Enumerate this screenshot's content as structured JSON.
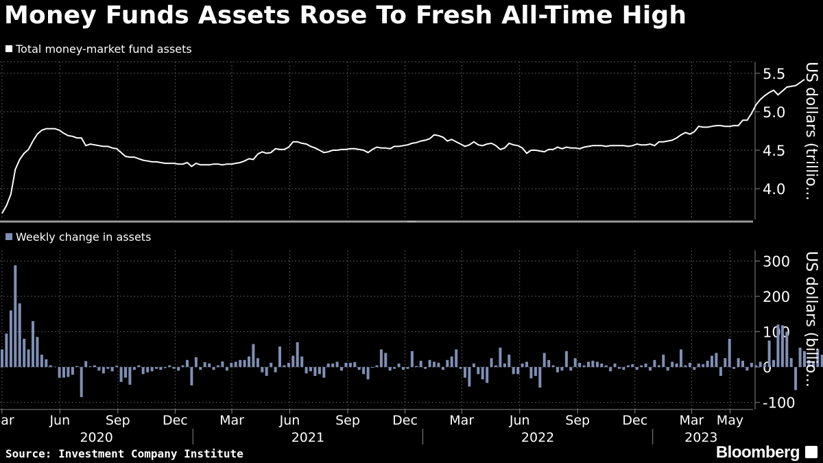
{
  "title": "Money Funds Assets Rose To Fresh All-Time High",
  "source": "Source: Investment Company Institute",
  "brand": "Bloomberg",
  "colors": {
    "line": "#ffffff",
    "bar": "#7f8fb5",
    "grid": "#555555",
    "background": "#000000"
  },
  "chart_data": [
    {
      "type": "line",
      "legend": "Total money-market fund assets",
      "ylabel": "US dollars (trillio...",
      "ylim": [
        3.6,
        5.65
      ],
      "yticks": [
        4.0,
        4.5,
        5.0,
        5.5
      ],
      "ytick_labels": [
        "4.0",
        "4.5",
        "5.0",
        "5.5"
      ],
      "x_start": "2020-03-04",
      "x_step_weeks": 1,
      "values": [
        3.68,
        3.78,
        3.93,
        4.25,
        4.38,
        4.46,
        4.51,
        4.62,
        4.71,
        4.76,
        4.78,
        4.78,
        4.78,
        4.76,
        4.72,
        4.69,
        4.68,
        4.66,
        4.66,
        4.56,
        4.58,
        4.57,
        4.56,
        4.55,
        4.55,
        4.53,
        4.52,
        4.47,
        4.42,
        4.41,
        4.41,
        4.39,
        4.37,
        4.36,
        4.35,
        4.35,
        4.34,
        4.33,
        4.33,
        4.33,
        4.32,
        4.32,
        4.34,
        4.29,
        4.33,
        4.31,
        4.31,
        4.31,
        4.32,
        4.32,
        4.31,
        4.32,
        4.32,
        4.33,
        4.34,
        4.36,
        4.39,
        4.38,
        4.45,
        4.48,
        4.46,
        4.47,
        4.52,
        4.51,
        4.51,
        4.54,
        4.61,
        4.61,
        4.59,
        4.58,
        4.55,
        4.53,
        4.5,
        4.47,
        4.48,
        4.5,
        4.5,
        4.51,
        4.51,
        4.52,
        4.52,
        4.51,
        4.5,
        4.47,
        4.51,
        4.54,
        4.53,
        4.53,
        4.52,
        4.55,
        4.55,
        4.56,
        4.57,
        4.59,
        4.6,
        4.62,
        4.63,
        4.65,
        4.7,
        4.69,
        4.67,
        4.62,
        4.64,
        4.61,
        4.58,
        4.55,
        4.57,
        4.61,
        4.57,
        4.56,
        4.58,
        4.59,
        4.56,
        4.51,
        4.53,
        4.59,
        4.57,
        4.56,
        4.53,
        4.46,
        4.5,
        4.5,
        4.49,
        4.48,
        4.51,
        4.51,
        4.54,
        4.52,
        4.54,
        4.53,
        4.53,
        4.52,
        4.54,
        4.55,
        4.56,
        4.56,
        4.56,
        4.55,
        4.56,
        4.56,
        4.56,
        4.56,
        4.55,
        4.56,
        4.58,
        4.57,
        4.57,
        4.58,
        4.56,
        4.61,
        4.61,
        4.62,
        4.63,
        4.66,
        4.7,
        4.73,
        4.71,
        4.74,
        4.81,
        4.8,
        4.8,
        4.81,
        4.82,
        4.82,
        4.81,
        4.81,
        4.82,
        4.82,
        4.89,
        4.89,
        4.98,
        5.09,
        5.16,
        5.21,
        5.25,
        5.28,
        5.22,
        5.27,
        5.32,
        5.33,
        5.34,
        5.38,
        5.42
      ]
    },
    {
      "type": "bar",
      "legend": "Weekly change in assets",
      "ylabel": "US dollars (billio...",
      "ylim": [
        -120,
        330
      ],
      "yticks": [
        -100,
        0,
        100,
        200,
        300
      ],
      "ytick_labels": [
        "-100",
        "0",
        "100",
        "200",
        "300"
      ],
      "x_start": "2020-03-04",
      "x_step_weeks": 1,
      "values": [
        50,
        95,
        160,
        288,
        180,
        80,
        50,
        130,
        85,
        35,
        22,
        5,
        1,
        -30,
        -30,
        -28,
        -22,
        3,
        -85,
        17,
        2,
        5,
        -10,
        -18,
        -5,
        -12,
        4,
        -42,
        -30,
        -50,
        -8,
        5,
        -20,
        -15,
        -12,
        -5,
        -8,
        -3,
        5,
        -5,
        -10,
        5,
        20,
        -52,
        28,
        -8,
        14,
        10,
        -8,
        5,
        16,
        -10,
        12,
        15,
        20,
        20,
        30,
        65,
        25,
        -15,
        -25,
        12,
        -15,
        58,
        5,
        12,
        32,
        70,
        30,
        -18,
        -12,
        -25,
        -20,
        -30,
        10,
        10,
        15,
        -10,
        12,
        12,
        14,
        -8,
        -20,
        -35,
        -2,
        5,
        50,
        40,
        -10,
        -5,
        10,
        -8,
        -5,
        45,
        3,
        18,
        -5,
        20,
        15,
        12,
        -8,
        20,
        30,
        50,
        -5,
        -30,
        -55,
        10,
        -20,
        -35,
        -45,
        25,
        5,
        55,
        10,
        35,
        -20,
        -20,
        10,
        15,
        -32,
        -25,
        -58,
        40,
        20,
        5,
        -15,
        -10,
        45,
        -10,
        25,
        12,
        5,
        15,
        18,
        15,
        10,
        5,
        -12,
        10,
        -5,
        -8,
        5,
        8,
        -8,
        5,
        10,
        -10,
        20,
        5,
        35,
        -10,
        15,
        10,
        50,
        5,
        12,
        -8,
        10,
        8,
        18,
        32,
        40,
        -25,
        25,
        80,
        -5,
        25,
        18,
        -10,
        12,
        5,
        15,
        8,
        75,
        20,
        120,
        118,
        100,
        25,
        -65,
        55,
        45,
        20,
        15,
        50,
        35
      ]
    }
  ],
  "x_axis": {
    "month_labels": [
      "Mar",
      "Jun",
      "Sep",
      "Dec",
      "Mar",
      "Jun",
      "Sep",
      "Dec",
      "Mar",
      "Jun",
      "Sep",
      "Dec",
      "Mar",
      "May"
    ],
    "year_labels": [
      "2020",
      "2021",
      "2022",
      "2023"
    ]
  }
}
